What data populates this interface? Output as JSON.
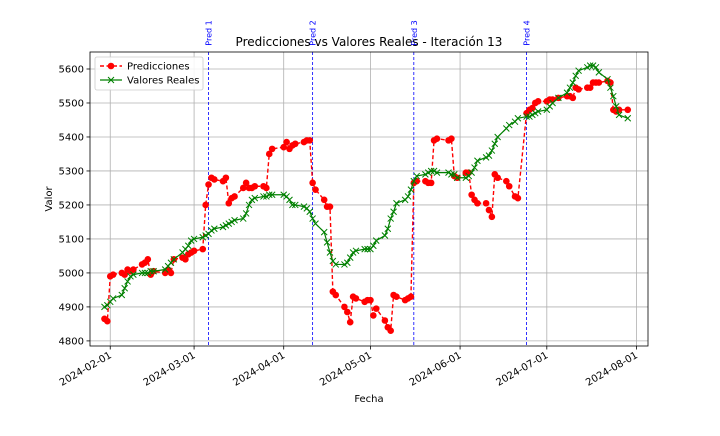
{
  "chart_data": {
    "type": "line",
    "title": "Predicciones vs Valores Reales - Iteración 13",
    "xlabel": "Fecha",
    "ylabel": "Valor",
    "grid": true,
    "legend_position": "upper-left",
    "xlim": [
      "2024-01-25",
      "2024-08-05"
    ],
    "ylim": [
      4785,
      5650
    ],
    "x_ticks": [
      "2024-02-01",
      "2024-03-01",
      "2024-04-01",
      "2024-05-01",
      "2024-06-01",
      "2024-07-01",
      "2024-08-01"
    ],
    "y_ticks": [
      4800,
      4900,
      5000,
      5100,
      5200,
      5300,
      5400,
      5500,
      5600
    ],
    "markers": [
      {
        "label": "Pred 1",
        "date": "2024-03-06"
      },
      {
        "label": "Pred 2",
        "date": "2024-04-11"
      },
      {
        "label": "Pred 3",
        "date": "2024-05-16"
      },
      {
        "label": "Pred 4",
        "date": "2024-06-24"
      }
    ],
    "series": [
      {
        "name": "Predicciones",
        "color": "#ff0000",
        "style": "dashed-circle",
        "points": [
          [
            "2024-01-30",
            4865
          ],
          [
            "2024-01-31",
            4858
          ],
          [
            "2024-02-01",
            4990
          ],
          [
            "2024-02-02",
            4995
          ],
          [
            "2024-02-05",
            5000
          ],
          [
            "2024-02-06",
            4995
          ],
          [
            "2024-02-07",
            5010
          ],
          [
            "2024-02-08",
            5005
          ],
          [
            "2024-02-09",
            5010
          ],
          [
            "2024-02-12",
            5025
          ],
          [
            "2024-02-13",
            5030
          ],
          [
            "2024-02-14",
            5040
          ],
          [
            "2024-02-15",
            4995
          ],
          [
            "2024-02-16",
            5005
          ],
          [
            "2024-02-20",
            5000
          ],
          [
            "2024-02-21",
            5010
          ],
          [
            "2024-02-22",
            5000
          ],
          [
            "2024-02-23",
            5040
          ],
          [
            "2024-02-26",
            5045
          ],
          [
            "2024-02-27",
            5040
          ],
          [
            "2024-02-28",
            5055
          ],
          [
            "2024-02-29",
            5060
          ],
          [
            "2024-03-01",
            5065
          ],
          [
            "2024-03-04",
            5070
          ],
          [
            "2024-03-05",
            5200
          ],
          [
            "2024-03-06",
            5260
          ],
          [
            "2024-03-07",
            5280
          ],
          [
            "2024-03-08",
            5275
          ],
          [
            "2024-03-11",
            5270
          ],
          [
            "2024-03-12",
            5280
          ],
          [
            "2024-03-13",
            5205
          ],
          [
            "2024-03-14",
            5220
          ],
          [
            "2024-03-15",
            5225
          ],
          [
            "2024-03-18",
            5250
          ],
          [
            "2024-03-19",
            5265
          ],
          [
            "2024-03-20",
            5250
          ],
          [
            "2024-03-21",
            5250
          ],
          [
            "2024-03-22",
            5255
          ],
          [
            "2024-03-25",
            5255
          ],
          [
            "2024-03-26",
            5250
          ],
          [
            "2024-03-27",
            5350
          ],
          [
            "2024-03-28",
            5365
          ],
          [
            "2024-04-01",
            5370
          ],
          [
            "2024-04-02",
            5385
          ],
          [
            "2024-04-03",
            5365
          ],
          [
            "2024-04-04",
            5375
          ],
          [
            "2024-04-05",
            5380
          ],
          [
            "2024-04-08",
            5385
          ],
          [
            "2024-04-09",
            5390
          ],
          [
            "2024-04-10",
            5390
          ],
          [
            "2024-04-11",
            5265
          ],
          [
            "2024-04-12",
            5245
          ],
          [
            "2024-04-15",
            5215
          ],
          [
            "2024-04-16",
            5195
          ],
          [
            "2024-04-17",
            5195
          ],
          [
            "2024-04-18",
            4945
          ],
          [
            "2024-04-19",
            4935
          ],
          [
            "2024-04-22",
            4900
          ],
          [
            "2024-04-23",
            4885
          ],
          [
            "2024-04-24",
            4855
          ],
          [
            "2024-04-25",
            4930
          ],
          [
            "2024-04-26",
            4925
          ],
          [
            "2024-04-29",
            4915
          ],
          [
            "2024-04-30",
            4920
          ],
          [
            "2024-05-01",
            4920
          ],
          [
            "2024-05-02",
            4875
          ],
          [
            "2024-05-03",
            4895
          ],
          [
            "2024-05-06",
            4860
          ],
          [
            "2024-05-07",
            4840
          ],
          [
            "2024-05-08",
            4830
          ],
          [
            "2024-05-09",
            4935
          ],
          [
            "2024-05-10",
            4930
          ],
          [
            "2024-05-13",
            4920
          ],
          [
            "2024-05-14",
            4925
          ],
          [
            "2024-05-15",
            4930
          ],
          [
            "2024-05-16",
            5265
          ],
          [
            "2024-05-17",
            5270
          ],
          [
            "2024-05-20",
            5270
          ],
          [
            "2024-05-21",
            5265
          ],
          [
            "2024-05-22",
            5265
          ],
          [
            "2024-05-23",
            5390
          ],
          [
            "2024-05-24",
            5395
          ],
          [
            "2024-05-28",
            5390
          ],
          [
            "2024-05-29",
            5395
          ],
          [
            "2024-05-30",
            5285
          ],
          [
            "2024-05-31",
            5280
          ],
          [
            "2024-06-03",
            5295
          ],
          [
            "2024-06-04",
            5295
          ],
          [
            "2024-06-05",
            5230
          ],
          [
            "2024-06-06",
            5215
          ],
          [
            "2024-06-07",
            5205
          ],
          [
            "2024-06-10",
            5205
          ],
          [
            "2024-06-11",
            5185
          ],
          [
            "2024-06-12",
            5165
          ],
          [
            "2024-06-13",
            5290
          ],
          [
            "2024-06-14",
            5280
          ],
          [
            "2024-06-17",
            5270
          ],
          [
            "2024-06-18",
            5255
          ],
          [
            "2024-06-20",
            5225
          ],
          [
            "2024-06-21",
            5220
          ],
          [
            "2024-06-24",
            5470
          ],
          [
            "2024-06-25",
            5480
          ],
          [
            "2024-06-26",
            5485
          ],
          [
            "2024-06-27",
            5500
          ],
          [
            "2024-06-28",
            5505
          ],
          [
            "2024-07-01",
            5505
          ],
          [
            "2024-07-02",
            5510
          ],
          [
            "2024-07-03",
            5510
          ],
          [
            "2024-07-05",
            5515
          ],
          [
            "2024-07-08",
            5520
          ],
          [
            "2024-07-09",
            5520
          ],
          [
            "2024-07-10",
            5515
          ],
          [
            "2024-07-11",
            5545
          ],
          [
            "2024-07-12",
            5540
          ],
          [
            "2024-07-15",
            5545
          ],
          [
            "2024-07-16",
            5545
          ],
          [
            "2024-07-17",
            5560
          ],
          [
            "2024-07-18",
            5560
          ],
          [
            "2024-07-19",
            5560
          ],
          [
            "2024-07-22",
            5565
          ],
          [
            "2024-07-23",
            5560
          ],
          [
            "2024-07-24",
            5480
          ],
          [
            "2024-07-25",
            5475
          ],
          [
            "2024-07-26",
            5480
          ],
          [
            "2024-07-29",
            5480
          ]
        ]
      },
      {
        "name": "Valores Reales",
        "color": "#008000",
        "style": "solid-x",
        "points": [
          [
            "2024-01-30",
            4900
          ],
          [
            "2024-01-31",
            4905
          ],
          [
            "2024-02-01",
            4915
          ],
          [
            "2024-02-02",
            4925
          ],
          [
            "2024-02-05",
            4935
          ],
          [
            "2024-02-06",
            4955
          ],
          [
            "2024-02-07",
            4975
          ],
          [
            "2024-02-08",
            4990
          ],
          [
            "2024-02-09",
            4995
          ],
          [
            "2024-02-12",
            5000
          ],
          [
            "2024-02-13",
            5000
          ],
          [
            "2024-02-14",
            5000
          ],
          [
            "2024-02-15",
            5005
          ],
          [
            "2024-02-16",
            5005
          ],
          [
            "2024-02-20",
            5010
          ],
          [
            "2024-02-21",
            5020
          ],
          [
            "2024-02-22",
            5030
          ],
          [
            "2024-02-23",
            5040
          ],
          [
            "2024-02-26",
            5060
          ],
          [
            "2024-02-27",
            5070
          ],
          [
            "2024-02-28",
            5080
          ],
          [
            "2024-02-29",
            5095
          ],
          [
            "2024-03-01",
            5100
          ],
          [
            "2024-03-04",
            5105
          ],
          [
            "2024-03-05",
            5110
          ],
          [
            "2024-03-06",
            5115
          ],
          [
            "2024-03-07",
            5125
          ],
          [
            "2024-03-08",
            5130
          ],
          [
            "2024-03-11",
            5135
          ],
          [
            "2024-03-12",
            5140
          ],
          [
            "2024-03-13",
            5145
          ],
          [
            "2024-03-14",
            5150
          ],
          [
            "2024-03-15",
            5155
          ],
          [
            "2024-03-18",
            5160
          ],
          [
            "2024-03-19",
            5175
          ],
          [
            "2024-03-20",
            5200
          ],
          [
            "2024-03-21",
            5215
          ],
          [
            "2024-03-22",
            5220
          ],
          [
            "2024-03-25",
            5225
          ],
          [
            "2024-03-26",
            5225
          ],
          [
            "2024-03-27",
            5230
          ],
          [
            "2024-03-28",
            5230
          ],
          [
            "2024-04-01",
            5230
          ],
          [
            "2024-04-02",
            5225
          ],
          [
            "2024-04-03",
            5215
          ],
          [
            "2024-04-04",
            5200
          ],
          [
            "2024-04-05",
            5200
          ],
          [
            "2024-04-08",
            5195
          ],
          [
            "2024-04-09",
            5190
          ],
          [
            "2024-04-10",
            5180
          ],
          [
            "2024-04-11",
            5160
          ],
          [
            "2024-04-12",
            5145
          ],
          [
            "2024-04-15",
            5120
          ],
          [
            "2024-04-16",
            5090
          ],
          [
            "2024-04-17",
            5060
          ],
          [
            "2024-04-18",
            5035
          ],
          [
            "2024-04-19",
            5025
          ],
          [
            "2024-04-22",
            5025
          ],
          [
            "2024-04-23",
            5030
          ],
          [
            "2024-04-24",
            5045
          ],
          [
            "2024-04-25",
            5060
          ],
          [
            "2024-04-26",
            5065
          ],
          [
            "2024-04-29",
            5070
          ],
          [
            "2024-04-30",
            5070
          ],
          [
            "2024-05-01",
            5070
          ],
          [
            "2024-05-02",
            5080
          ],
          [
            "2024-05-03",
            5095
          ],
          [
            "2024-05-06",
            5110
          ],
          [
            "2024-05-07",
            5130
          ],
          [
            "2024-05-08",
            5160
          ],
          [
            "2024-05-09",
            5180
          ],
          [
            "2024-05-10",
            5205
          ],
          [
            "2024-05-13",
            5215
          ],
          [
            "2024-05-14",
            5225
          ],
          [
            "2024-05-15",
            5245
          ],
          [
            "2024-05-16",
            5270
          ],
          [
            "2024-05-17",
            5285
          ],
          [
            "2024-05-20",
            5290
          ],
          [
            "2024-05-21",
            5295
          ],
          [
            "2024-05-22",
            5300
          ],
          [
            "2024-05-23",
            5300
          ],
          [
            "2024-05-24",
            5295
          ],
          [
            "2024-05-28",
            5295
          ],
          [
            "2024-05-29",
            5290
          ],
          [
            "2024-05-30",
            5290
          ],
          [
            "2024-05-31",
            5280
          ],
          [
            "2024-06-03",
            5280
          ],
          [
            "2024-06-04",
            5285
          ],
          [
            "2024-06-05",
            5295
          ],
          [
            "2024-06-06",
            5310
          ],
          [
            "2024-06-07",
            5330
          ],
          [
            "2024-06-10",
            5340
          ],
          [
            "2024-06-11",
            5345
          ],
          [
            "2024-06-12",
            5360
          ],
          [
            "2024-06-13",
            5380
          ],
          [
            "2024-06-14",
            5400
          ],
          [
            "2024-06-17",
            5425
          ],
          [
            "2024-06-18",
            5435
          ],
          [
            "2024-06-20",
            5445
          ],
          [
            "2024-06-21",
            5455
          ],
          [
            "2024-06-24",
            5460
          ],
          [
            "2024-06-25",
            5460
          ],
          [
            "2024-06-26",
            5465
          ],
          [
            "2024-06-27",
            5470
          ],
          [
            "2024-06-28",
            5475
          ],
          [
            "2024-07-01",
            5480
          ],
          [
            "2024-07-02",
            5490
          ],
          [
            "2024-07-03",
            5500
          ],
          [
            "2024-07-05",
            5515
          ],
          [
            "2024-07-08",
            5530
          ],
          [
            "2024-07-09",
            5545
          ],
          [
            "2024-07-10",
            5560
          ],
          [
            "2024-07-11",
            5580
          ],
          [
            "2024-07-12",
            5595
          ],
          [
            "2024-07-15",
            5605
          ],
          [
            "2024-07-16",
            5610
          ],
          [
            "2024-07-17",
            5610
          ],
          [
            "2024-07-18",
            5605
          ],
          [
            "2024-07-19",
            5590
          ],
          [
            "2024-07-22",
            5570
          ],
          [
            "2024-07-23",
            5545
          ],
          [
            "2024-07-24",
            5520
          ],
          [
            "2024-07-25",
            5490
          ],
          [
            "2024-07-26",
            5465
          ],
          [
            "2024-07-29",
            5455
          ]
        ]
      }
    ]
  }
}
